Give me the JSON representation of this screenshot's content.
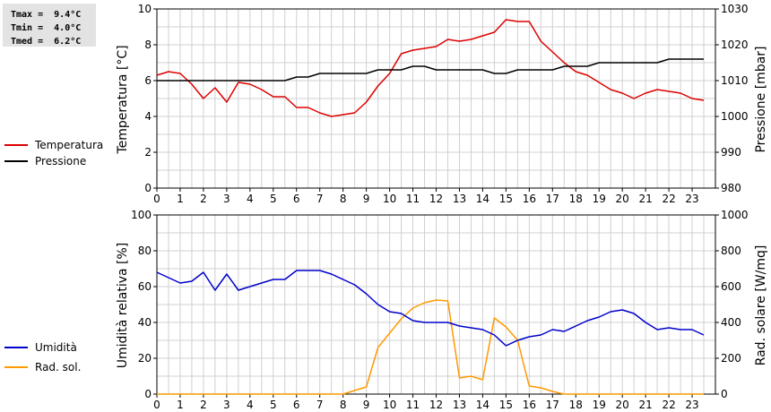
{
  "stats": {
    "tmax": "Tmax =  9.4°C",
    "tmin": "Tmin =  4.0°C",
    "tmed": "Tmed =  6.2°C"
  },
  "colors": {
    "temperature": "#dd0000",
    "pressure": "#000000",
    "humidity": "#0000cc",
    "radiation": "#ff9900",
    "grid": "#d0d0d0"
  },
  "chart_data": [
    {
      "type": "line",
      "x_ticks": [
        "0",
        "1",
        "2",
        "3",
        "4",
        "5",
        "6",
        "7",
        "8",
        "9",
        "10",
        "11",
        "12",
        "13",
        "14",
        "15",
        "16",
        "17",
        "18",
        "19",
        "20",
        "21",
        "22",
        "23"
      ],
      "xlim": [
        0,
        24
      ],
      "ylabel_left": "Temperatura [°C]",
      "ylim_left": [
        0,
        10
      ],
      "yticks_left": [
        "0",
        "2",
        "4",
        "6",
        "8",
        "10"
      ],
      "ylabel_right": "Pressione [mbar]",
      "ylim_right": [
        980,
        1030
      ],
      "yticks_right": [
        "980",
        "990",
        "1000",
        "1010",
        "1020",
        "1030"
      ],
      "series": [
        {
          "name": "Temperatura",
          "axis": "left",
          "x": [
            0,
            0.5,
            1,
            1.5,
            2,
            2.5,
            3,
            3.5,
            4,
            4.5,
            5,
            5.5,
            6,
            6.5,
            7,
            7.5,
            8,
            8.5,
            9,
            9.5,
            10,
            10.5,
            11,
            11.5,
            12,
            12.5,
            13,
            13.5,
            14,
            14.5,
            15,
            15.5,
            16,
            16.5,
            17,
            17.5,
            18,
            18.5,
            19,
            19.5,
            20,
            20.5,
            21,
            21.5,
            22,
            22.5,
            23,
            23.5
          ],
          "y": [
            6.3,
            6.5,
            6.4,
            5.8,
            5.0,
            5.6,
            4.8,
            5.9,
            5.8,
            5.5,
            5.1,
            5.1,
            4.5,
            4.5,
            4.2,
            4.0,
            4.1,
            4.2,
            4.8,
            5.7,
            6.4,
            7.5,
            7.7,
            7.8,
            7.9,
            8.3,
            8.2,
            8.3,
            8.5,
            8.7,
            9.4,
            9.3,
            9.3,
            8.2,
            7.6,
            7.0,
            6.5,
            6.3,
            5.9,
            5.5,
            5.3,
            5.0,
            5.3,
            5.5,
            5.4,
            5.3,
            5.0,
            4.9
          ]
        },
        {
          "name": "Pressione",
          "axis": "right",
          "x": [
            0,
            0.5,
            1,
            1.5,
            2,
            2.5,
            3,
            3.5,
            4,
            4.5,
            5,
            5.5,
            6,
            6.5,
            7,
            7.5,
            8,
            8.5,
            9,
            9.5,
            10,
            10.5,
            11,
            11.5,
            12,
            12.5,
            13,
            13.5,
            14,
            14.5,
            15,
            15.5,
            16,
            16.5,
            17,
            17.5,
            18,
            18.5,
            19,
            19.5,
            20,
            20.5,
            21,
            21.5,
            22,
            22.5,
            23,
            23.5
          ],
          "y": [
            1010,
            1010,
            1010,
            1010,
            1010,
            1010,
            1010,
            1010,
            1010,
            1010,
            1010,
            1010,
            1011,
            1011,
            1012,
            1012,
            1012,
            1012,
            1012,
            1013,
            1013,
            1013,
            1014,
            1014,
            1013,
            1013,
            1013,
            1013,
            1013,
            1012,
            1012,
            1013,
            1013,
            1013,
            1013,
            1014,
            1014,
            1014,
            1015,
            1015,
            1015,
            1015,
            1015,
            1015,
            1016,
            1016,
            1016,
            1016
          ]
        }
      ]
    },
    {
      "type": "line",
      "x_ticks": [
        "0",
        "1",
        "2",
        "3",
        "4",
        "5",
        "6",
        "7",
        "8",
        "9",
        "10",
        "11",
        "12",
        "13",
        "14",
        "15",
        "16",
        "17",
        "18",
        "19",
        "20",
        "21",
        "22",
        "23"
      ],
      "xlim": [
        0,
        24
      ],
      "ylabel_left": "Umidità relativa [%]",
      "ylim_left": [
        0,
        100
      ],
      "yticks_left": [
        "0",
        "20",
        "40",
        "60",
        "80",
        "100"
      ],
      "ylabel_right": "Rad. solare [W/mq]",
      "ylim_right": [
        0,
        1000
      ],
      "yticks_right": [
        "0",
        "200",
        "400",
        "600",
        "800",
        "1000"
      ],
      "series": [
        {
          "name": "Umidità",
          "axis": "left",
          "x": [
            0,
            0.5,
            1,
            1.5,
            2,
            2.5,
            3,
            3.5,
            4,
            4.5,
            5,
            5.5,
            6,
            6.5,
            7,
            7.5,
            8,
            8.5,
            9,
            9.5,
            10,
            10.5,
            11,
            11.5,
            12,
            12.5,
            13,
            13.5,
            14,
            14.5,
            15,
            15.5,
            16,
            16.5,
            17,
            17.5,
            18,
            18.5,
            19,
            19.5,
            20,
            20.5,
            21,
            21.5,
            22,
            22.5,
            23,
            23.5
          ],
          "y": [
            68,
            65,
            62,
            63,
            68,
            58,
            67,
            58,
            60,
            62,
            64,
            64,
            69,
            69,
            69,
            67,
            64,
            61,
            56,
            50,
            46,
            45,
            41,
            40,
            40,
            40,
            38,
            37,
            36,
            33,
            27,
            30,
            32,
            33,
            36,
            35,
            38,
            41,
            43,
            46,
            47,
            45,
            40,
            36,
            37,
            36,
            36,
            33
          ]
        },
        {
          "name": "Rad. sol.",
          "axis": "right",
          "x": [
            0,
            1,
            2,
            3,
            4,
            5,
            6,
            7,
            7.5,
            8,
            8.5,
            9,
            9.5,
            10,
            10.5,
            11,
            11.5,
            12,
            12.5,
            13,
            13.5,
            14,
            14.5,
            15,
            15.5,
            16,
            16.5,
            17,
            17.5,
            18,
            19,
            20,
            21,
            22,
            23,
            23.5
          ],
          "y": [
            0,
            0,
            0,
            0,
            0,
            0,
            0,
            0,
            0,
            0,
            20,
            40,
            260,
            340,
            420,
            480,
            510,
            525,
            520,
            90,
            100,
            80,
            425,
            375,
            300,
            45,
            35,
            15,
            0,
            0,
            0,
            0,
            0,
            0,
            0,
            0
          ]
        }
      ]
    }
  ]
}
